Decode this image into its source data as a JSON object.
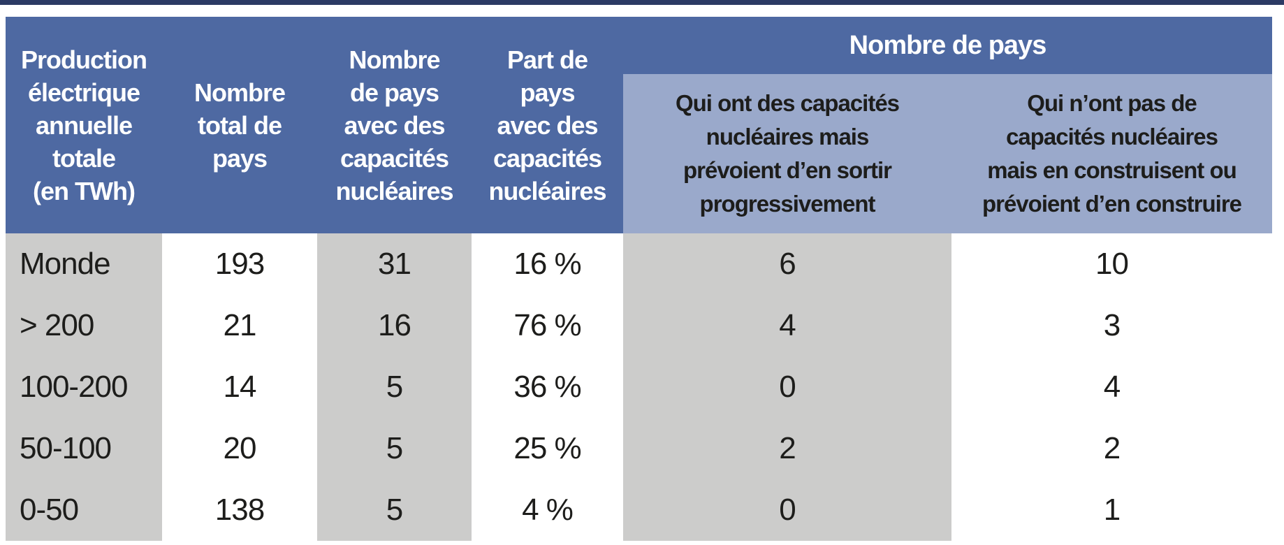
{
  "chart_data": {
    "type": "table",
    "group_header": "Nombre de pays",
    "columns": [
      "Production électrique annuelle totale (en TWh)",
      "Nombre total de pays",
      "Nombre de pays avec des capacités nucléaires",
      "Part de pays avec des capacités nucléaires",
      "Nombre de pays qui ont des capacités nucléaires mais prévoient d’en sortir progressivement",
      "Nombre de pays qui n’ont pas de capacités nucléaires mais en construisent ou prévoient d’en construire"
    ],
    "rows": [
      [
        "Monde",
        "193",
        "31",
        "16 %",
        "6",
        "10"
      ],
      [
        "> 200",
        "21",
        "16",
        "76 %",
        "4",
        "3"
      ],
      [
        "100-200",
        "14",
        "5",
        "36 %",
        "0",
        "4"
      ],
      [
        "50-100",
        "20",
        "5",
        "25 %",
        "2",
        "2"
      ],
      [
        "0-50",
        "138",
        "5",
        "4 %",
        "0",
        "1"
      ]
    ],
    "share_pct_values": [
      16,
      76,
      36,
      25,
      4
    ],
    "layout_hints": "column shading alternates gray/white; right two columns grouped under a spanning header"
  },
  "table": {
    "headers": [
      {
        "lines": [
          "Production",
          "électrique",
          "annuelle",
          "totale",
          "(en TWh)"
        ]
      },
      {
        "lines": [
          "Nombre",
          "total de",
          "pays"
        ]
      },
      {
        "lines": [
          "Nombre",
          "de pays",
          "avec des",
          "capacités",
          "nucléaires"
        ]
      },
      {
        "lines": [
          "Part de",
          "pays",
          "avec des",
          "capacités",
          "nucléaires"
        ]
      }
    ],
    "group_header": {
      "label": "Nombre de pays",
      "sub_headers": [
        {
          "lines": [
            "Qui ont des capacités",
            "nucléaires mais",
            "prévoient d’en sortir",
            "progressivement"
          ]
        },
        {
          "lines": [
            "Qui n’ont pas de",
            "capacités nucléaires",
            "mais en construisent ou",
            "prévoient d’en construire"
          ]
        }
      ]
    }
  },
  "colors": {
    "header_blue": "#4e69a2",
    "subheader_blue": "#9aa9cb",
    "shade_gray": "#cccccb",
    "top_strip_navy": "#2c3a64",
    "header_text": "#ffffff",
    "body_text": "#1d1d1b"
  }
}
